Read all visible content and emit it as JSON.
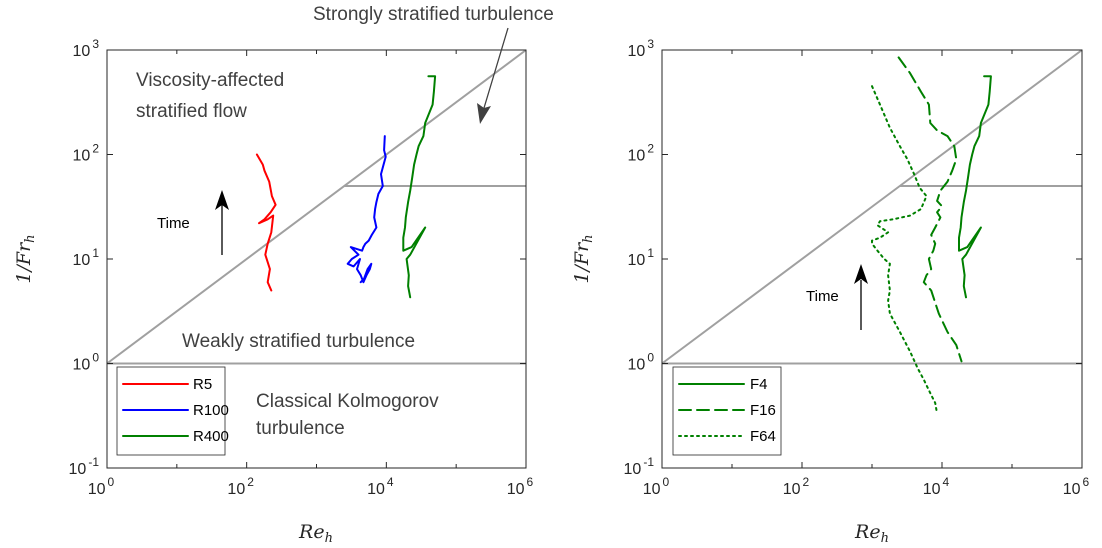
{
  "figure": {
    "top_annotation": "Strongly stratified turbulence"
  },
  "chart_data": [
    {
      "type": "line",
      "xlabel_base": "Re",
      "xlabel_sub": "h",
      "ylabel_pre": "1/",
      "ylabel_base": "Fr",
      "ylabel_sub": "h",
      "xscale": "log",
      "yscale": "log",
      "xlim": [
        1,
        1000000
      ],
      "ylim": [
        0.1,
        1000
      ],
      "xticks": [
        {
          "base": "10",
          "exp": "0"
        },
        {
          "base": "10",
          "exp": "2"
        },
        {
          "base": "10",
          "exp": "4"
        },
        {
          "base": "10",
          "exp": "6"
        }
      ],
      "yticks": [
        {
          "base": "10",
          "exp": "-1"
        },
        {
          "base": "10",
          "exp": "0"
        },
        {
          "base": "10",
          "exp": "1"
        },
        {
          "base": "10",
          "exp": "2"
        },
        {
          "base": "10",
          "exp": "3"
        }
      ],
      "regime_lines": {
        "diagonal": [
          [
            1,
            1
          ],
          [
            1000000,
            1000
          ]
        ],
        "horizontal_1": [
          [
            1,
            1
          ],
          [
            1000000,
            1
          ]
        ],
        "horizontal_50": [
          [
            2500,
            50
          ],
          [
            1000000,
            50
          ]
        ]
      },
      "annotations": {
        "viscosity_line1": "Viscosity-affected",
        "viscosity_line2": "stratified flow",
        "weakly": "Weakly stratified turbulence",
        "classical_line1": "Classical Kolmogorov",
        "classical_line2": "turbulence",
        "time": "Time"
      },
      "legend_position": "bottom-left",
      "series": [
        {
          "name": "R5",
          "color": "#ff0000",
          "dash": "solid",
          "points": [
            [
              140,
              100
            ],
            [
              170,
              80
            ],
            [
              180,
              70
            ],
            [
              210,
              55
            ],
            [
              230,
              40
            ],
            [
              260,
              33
            ],
            [
              220,
              28
            ],
            [
              180,
              24
            ],
            [
              150,
              22
            ],
            [
              200,
              24
            ],
            [
              240,
              26
            ],
            [
              225,
              18
            ],
            [
              200,
              14
            ],
            [
              185,
              11
            ],
            [
              215,
              8
            ],
            [
              200,
              6
            ],
            [
              225,
              5
            ]
          ]
        },
        {
          "name": "R100",
          "color": "#0000ff",
          "dash": "solid",
          "points": [
            [
              9500,
              150
            ],
            [
              9300,
              110
            ],
            [
              9800,
              95
            ],
            [
              8400,
              65
            ],
            [
              8900,
              50
            ],
            [
              7700,
              42
            ],
            [
              7200,
              35
            ],
            [
              6900,
              30
            ],
            [
              6700,
              25
            ],
            [
              7200,
              20
            ],
            [
              6200,
              17
            ],
            [
              5600,
              15
            ],
            [
              5000,
              14
            ],
            [
              4700,
              13
            ],
            [
              4500,
              12
            ],
            [
              3100,
              13
            ],
            [
              4000,
              11
            ],
            [
              3200,
              10
            ],
            [
              2800,
              9
            ],
            [
              3400,
              8.5
            ],
            [
              4200,
              10
            ],
            [
              3800,
              8
            ],
            [
              4300,
              7
            ],
            [
              4700,
              6
            ],
            [
              5200,
              7
            ],
            [
              5800,
              8
            ],
            [
              6100,
              9
            ],
            [
              5400,
              8
            ],
            [
              4800,
              6.5
            ],
            [
              4300,
              6
            ]
          ]
        },
        {
          "name": "R400",
          "color": "#008000",
          "dash": "solid",
          "points": [
            [
              40000,
              560
            ],
            [
              50000,
              560
            ],
            [
              48000,
              400
            ],
            [
              46000,
              300
            ],
            [
              36000,
              200
            ],
            [
              34000,
              150
            ],
            [
              29000,
              120
            ],
            [
              27000,
              100
            ],
            [
              25000,
              80
            ],
            [
              23500,
              60
            ],
            [
              22000,
              45
            ],
            [
              20500,
              35
            ],
            [
              19000,
              25
            ],
            [
              18500,
              20
            ],
            [
              17500,
              16
            ],
            [
              17500,
              12
            ],
            [
              23000,
              13
            ],
            [
              36000,
              20
            ],
            [
              22000,
              11
            ],
            [
              19500,
              10
            ],
            [
              21000,
              7
            ],
            [
              20500,
              5.5
            ],
            [
              22000,
              4.3
            ]
          ]
        }
      ]
    },
    {
      "type": "line",
      "xlabel_base": "Re",
      "xlabel_sub": "h",
      "ylabel_pre": "1/",
      "ylabel_base": "Fr",
      "ylabel_sub": "h",
      "xscale": "log",
      "yscale": "log",
      "xlim": [
        1,
        1000000
      ],
      "ylim": [
        0.1,
        1000
      ],
      "xticks": [
        {
          "base": "10",
          "exp": "0"
        },
        {
          "base": "10",
          "exp": "2"
        },
        {
          "base": "10",
          "exp": "4"
        },
        {
          "base": "10",
          "exp": "6"
        }
      ],
      "yticks": [
        {
          "base": "10",
          "exp": "-1"
        },
        {
          "base": "10",
          "exp": "0"
        },
        {
          "base": "10",
          "exp": "1"
        },
        {
          "base": "10",
          "exp": "2"
        },
        {
          "base": "10",
          "exp": "3"
        }
      ],
      "regime_lines": {
        "diagonal": [
          [
            1,
            1
          ],
          [
            1000000,
            1000
          ]
        ],
        "horizontal_1": [
          [
            1,
            1
          ],
          [
            1000000,
            1
          ]
        ],
        "horizontal_50": [
          [
            2500,
            50
          ],
          [
            1000000,
            50
          ]
        ]
      },
      "annotations": {
        "time": "Time"
      },
      "legend_position": "bottom-left",
      "series": [
        {
          "name": "F4",
          "color": "#008000",
          "dash": "solid",
          "points": [
            [
              40000,
              560
            ],
            [
              50000,
              560
            ],
            [
              48000,
              400
            ],
            [
              46000,
              300
            ],
            [
              36000,
              200
            ],
            [
              34000,
              150
            ],
            [
              29000,
              120
            ],
            [
              27000,
              100
            ],
            [
              25000,
              80
            ],
            [
              23500,
              60
            ],
            [
              22000,
              45
            ],
            [
              20500,
              35
            ],
            [
              19000,
              25
            ],
            [
              18500,
              20
            ],
            [
              17500,
              16
            ],
            [
              17500,
              12
            ],
            [
              23000,
              13
            ],
            [
              36000,
              20
            ],
            [
              22000,
              11
            ],
            [
              19500,
              10
            ],
            [
              21000,
              7
            ],
            [
              20500,
              5.5
            ],
            [
              22000,
              4.3
            ]
          ]
        },
        {
          "name": "F16",
          "color": "#008000",
          "dash": "dashed",
          "points": [
            [
              2400,
              850
            ],
            [
              3500,
              600
            ],
            [
              5000,
              400
            ],
            [
              6500,
              300
            ],
            [
              6800,
              200
            ],
            [
              8500,
              170
            ],
            [
              12000,
              150
            ],
            [
              15000,
              120
            ],
            [
              16000,
              90
            ],
            [
              14000,
              70
            ],
            [
              12000,
              55
            ],
            [
              9500,
              45
            ],
            [
              8500,
              36
            ],
            [
              10000,
              32
            ],
            [
              8500,
              28
            ],
            [
              9500,
              25
            ],
            [
              8000,
              20
            ],
            [
              7000,
              17
            ],
            [
              8000,
              14
            ],
            [
              7500,
              12
            ],
            [
              6500,
              10
            ],
            [
              7000,
              8
            ],
            [
              6000,
              7
            ],
            [
              5500,
              6
            ],
            [
              7000,
              5
            ],
            [
              9000,
              3
            ],
            [
              12000,
              2
            ],
            [
              16000,
              1.5
            ],
            [
              19000,
              1.05
            ]
          ]
        },
        {
          "name": "F64",
          "color": "#008000",
          "dash": "dotted",
          "points": [
            [
              1000,
              450
            ],
            [
              1300,
              300
            ],
            [
              1800,
              180
            ],
            [
              2500,
              120
            ],
            [
              3200,
              90
            ],
            [
              4000,
              65
            ],
            [
              4800,
              48
            ],
            [
              6000,
              40
            ],
            [
              5000,
              30
            ],
            [
              3500,
              26
            ],
            [
              2000,
              24
            ],
            [
              1300,
              23
            ],
            [
              1200,
              21
            ],
            [
              1700,
              18
            ],
            [
              1300,
              16
            ],
            [
              1000,
              15
            ],
            [
              1000,
              14
            ],
            [
              1200,
              12
            ],
            [
              1500,
              10
            ],
            [
              1800,
              9
            ],
            [
              1700,
              7
            ],
            [
              1800,
              5
            ],
            [
              1700,
              4
            ],
            [
              1800,
              3
            ],
            [
              2500,
              2
            ],
            [
              3500,
              1.3
            ],
            [
              4500,
              0.9
            ],
            [
              5500,
              0.7
            ],
            [
              7000,
              0.5
            ],
            [
              8000,
              0.42
            ],
            [
              8500,
              0.33
            ]
          ]
        }
      ]
    }
  ]
}
